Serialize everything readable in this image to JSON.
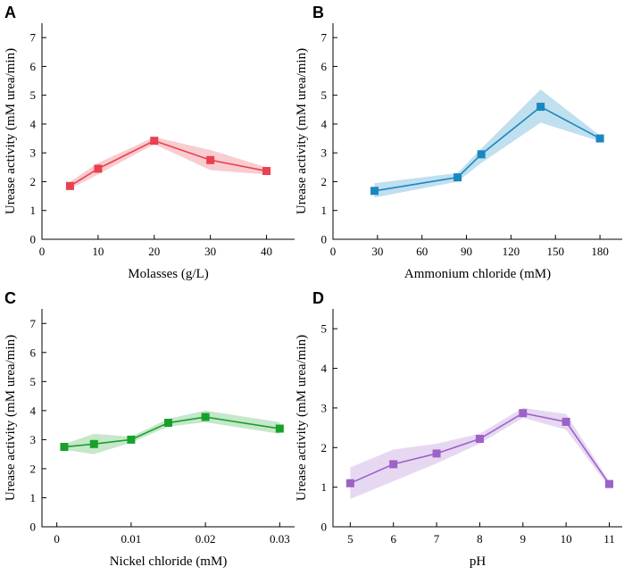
{
  "chart_data": [
    {
      "panel": "A",
      "type": "line",
      "xlabel": "Molasses (g/L)",
      "ylabel": "Urease activity (mM urea/min)",
      "xlim": [
        0,
        45
      ],
      "ylim": [
        0,
        7.5
      ],
      "xticks": [
        0,
        10,
        20,
        30,
        40
      ],
      "xtick_labels": [
        "0",
        "10",
        "20",
        "30",
        "40"
      ],
      "yticks": [
        0,
        1,
        2,
        3,
        4,
        5,
        6,
        7
      ],
      "ytick_labels": [
        "0",
        "1",
        "2",
        "3",
        "4",
        "5",
        "6",
        "7"
      ],
      "color": "#e8414f",
      "band_color": "#f4a3a9",
      "series": [
        {
          "name": "Molasses",
          "x": [
            5,
            10,
            20,
            30,
            40
          ],
          "y": [
            1.85,
            2.45,
            3.42,
            2.75,
            2.37
          ],
          "lower": [
            1.75,
            2.25,
            3.3,
            2.4,
            2.25
          ],
          "upper": [
            2.0,
            2.65,
            3.55,
            3.1,
            2.5
          ]
        }
      ]
    },
    {
      "panel": "B",
      "type": "line",
      "xlabel": "Ammonium chloride (mM)",
      "ylabel": "Urease activity (mM urea/min)",
      "xlim": [
        0,
        195
      ],
      "ylim": [
        0,
        7.5
      ],
      "xticks": [
        0,
        30,
        60,
        90,
        120,
        150,
        180
      ],
      "xtick_labels": [
        "0",
        "30",
        "60",
        "90",
        "120",
        "150",
        "180"
      ],
      "yticks": [
        0,
        1,
        2,
        3,
        4,
        5,
        6,
        7
      ],
      "ytick_labels": [
        "0",
        "1",
        "2",
        "3",
        "4",
        "5",
        "6",
        "7"
      ],
      "color": "#1a87c1",
      "band_color": "#8cc4e2",
      "series": [
        {
          "name": "Ammonium chloride",
          "x": [
            28,
            84,
            100,
            140,
            180
          ],
          "y": [
            1.68,
            2.15,
            2.95,
            4.6,
            3.5
          ],
          "lower": [
            1.45,
            2.0,
            2.65,
            4.05,
            3.4
          ],
          "upper": [
            1.95,
            2.3,
            3.15,
            5.2,
            3.6
          ]
        }
      ]
    },
    {
      "panel": "C",
      "type": "line",
      "xlabel": "Nickel chloride (mM)",
      "ylabel": "Urease activity (mM urea/min)",
      "xlim": [
        -0.002,
        0.032
      ],
      "ylim": [
        0,
        7.5
      ],
      "xticks": [
        0,
        0.01,
        0.02,
        0.03
      ],
      "xtick_labels": [
        "0",
        "0.01",
        "0.02",
        "0.03"
      ],
      "yticks": [
        0,
        1,
        2,
        3,
        4,
        5,
        6,
        7
      ],
      "ytick_labels": [
        "0",
        "1",
        "2",
        "3",
        "4",
        "5",
        "6",
        "7"
      ],
      "color": "#17a12b",
      "band_color": "#97d49f",
      "series": [
        {
          "name": "Nickel chloride",
          "x": [
            0.001,
            0.005,
            0.01,
            0.015,
            0.02,
            0.03
          ],
          "y": [
            2.75,
            2.85,
            3.0,
            3.58,
            3.78,
            3.38
          ],
          "lower": [
            2.65,
            2.5,
            2.9,
            3.45,
            3.6,
            3.2
          ],
          "upper": [
            2.85,
            3.2,
            3.1,
            3.72,
            4.0,
            3.6
          ]
        }
      ]
    },
    {
      "panel": "D",
      "type": "line",
      "xlabel": "pH",
      "ylabel": "Urease activity (mM urea/min)",
      "xlim": [
        4.6,
        11.3
      ],
      "ylim": [
        0,
        5.5
      ],
      "xticks": [
        5,
        6,
        7,
        8,
        9,
        10,
        11
      ],
      "xtick_labels": [
        "5",
        "6",
        "7",
        "8",
        "9",
        "10",
        "11"
      ],
      "yticks": [
        0,
        1,
        2,
        3,
        4,
        5
      ],
      "ytick_labels": [
        "0",
        "1",
        "2",
        "3",
        "4",
        "5"
      ],
      "color": "#9c62c8",
      "band_color": "#d3b8e8",
      "series": [
        {
          "name": "pH",
          "x": [
            5,
            6,
            7,
            8,
            9,
            10,
            11
          ],
          "y": [
            1.1,
            1.58,
            1.85,
            2.22,
            2.87,
            2.65,
            1.08
          ],
          "lower": [
            0.7,
            1.15,
            1.6,
            2.1,
            2.75,
            2.45,
            1.0
          ],
          "upper": [
            1.5,
            1.95,
            2.1,
            2.35,
            3.0,
            2.85,
            1.15
          ]
        }
      ]
    }
  ]
}
